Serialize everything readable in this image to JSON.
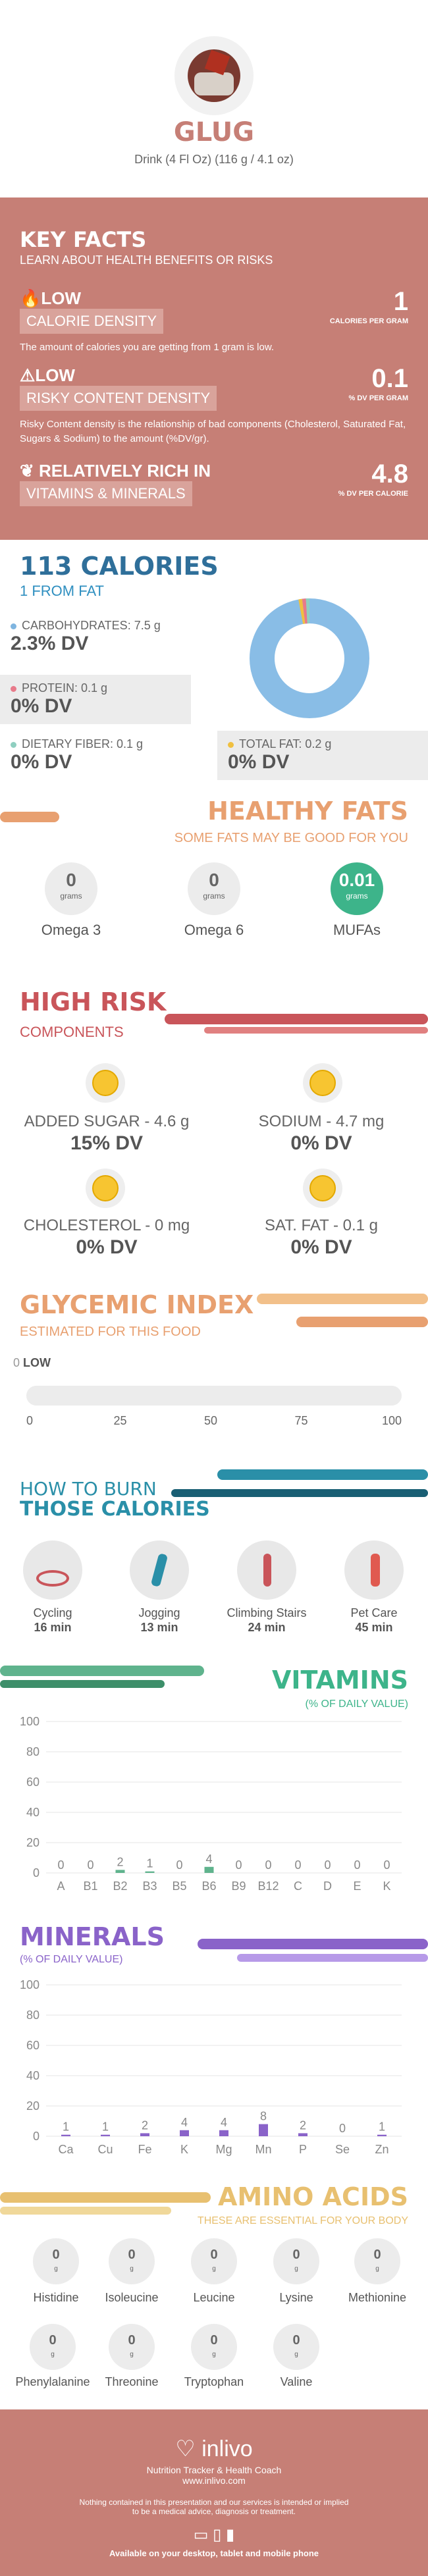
{
  "header": {
    "name": "GLUG",
    "serving": "Drink (4 Fl Oz) (116 g / 4.1 oz)"
  },
  "key_facts": {
    "title": "KEY FACTS",
    "subtitle": "LEARN ABOUT HEALTH BENEFITS OR RISKS",
    "items": [
      {
        "level": "LOW",
        "label": "CALORIE DENSITY",
        "value": "1",
        "unit": "CALORIES PER GRAM",
        "desc": "The amount of calories you are getting from 1 gram is low."
      },
      {
        "level": "LOW",
        "label": "RISKY CONTENT DENSITY",
        "value": "0.1",
        "unit": "% DV PER GRAM",
        "desc": "Risky Content density is the relationship of bad components (Cholesterol, Saturated Fat, Sugars & Sodium) to the amount (%DV/gr)."
      },
      {
        "level": "RELATIVELY RICH",
        "label_suffix": "IN",
        "label": "VITAMINS & MINERALS",
        "value": "4.8",
        "unit": "% DV PER CALORIE"
      }
    ]
  },
  "calories": {
    "title": "113 CALORIES",
    "subtitle": "1 FROM FAT",
    "carbs_label": "CARBOHYDRATES: 7.5 g",
    "carbs_dv": "2.3% DV",
    "protein_label": "PROTEIN: 0.1 g",
    "protein_dv": "0% DV",
    "fiber_label": "DIETARY FIBER: 0.1 g",
    "fiber_dv": "0% DV",
    "fat_label": "TOTAL FAT: 0.2 g",
    "fat_dv": "0% DV",
    "donut": {
      "carbs": 0.97,
      "protein": 0.01,
      "fiber": 0.01,
      "fat": 0.01
    }
  },
  "fats": {
    "title": "HEALTHY FATS",
    "subtitle": "SOME FATS MAY BE GOOD FOR YOU",
    "items": [
      {
        "value": "0",
        "unit": "grams",
        "label": "Omega 3"
      },
      {
        "value": "0",
        "unit": "grams",
        "label": "Omega 6"
      },
      {
        "value": "0.01",
        "unit": "grams",
        "label": "MUFAs"
      }
    ]
  },
  "risk": {
    "title": "HIGH RISK",
    "subtitle": "COMPONENTS",
    "items": [
      {
        "label": "ADDED SUGAR - 4.6 g",
        "dv": "15% DV"
      },
      {
        "label": "SODIUM - 4.7 mg",
        "dv": "0% DV"
      },
      {
        "label": "CHOLESTEROL - 0 mg",
        "dv": "0% DV"
      },
      {
        "label": "SAT. FAT - 0.1 g",
        "dv": "0% DV"
      }
    ]
  },
  "glycemic": {
    "title": "GLYCEMIC INDEX",
    "subtitle": "ESTIMATED FOR THIS FOOD",
    "value": "0",
    "level": "LOW",
    "ticks": [
      "0",
      "25",
      "50",
      "75",
      "100"
    ]
  },
  "burn": {
    "title1": "HOW TO BURN",
    "title2": "THOSE CALORIES",
    "items": [
      {
        "label": "Cycling",
        "min": "16 min"
      },
      {
        "label": "Jogging",
        "min": "13 min"
      },
      {
        "label": "Climbing Stairs",
        "min": "24 min"
      },
      {
        "label": "Pet Care",
        "min": "45 min"
      }
    ]
  },
  "vitamins": {
    "title": "VITAMINS",
    "subtitle": "(% OF DAILY VALUE)"
  },
  "minerals": {
    "title": "MINERALS",
    "subtitle": "(% OF DAILY VALUE)"
  },
  "chart_data": [
    {
      "type": "bar",
      "title": "VITAMINS",
      "ylim": [
        0,
        100
      ],
      "yticks": [
        0,
        20,
        40,
        60,
        80,
        100
      ],
      "categories": [
        "A",
        "B1",
        "B2",
        "B3",
        "B5",
        "B6",
        "B9",
        "B12",
        "C",
        "D",
        "E",
        "K"
      ],
      "values": [
        0,
        0,
        2,
        1,
        0,
        4,
        0,
        0,
        0,
        0,
        0,
        0
      ],
      "color": "#5fb38d"
    },
    {
      "type": "bar",
      "title": "MINERALS",
      "ylim": [
        0,
        100
      ],
      "yticks": [
        0,
        20,
        40,
        60,
        80,
        100
      ],
      "categories": [
        "Ca",
        "Cu",
        "Fe",
        "K",
        "Mg",
        "Mn",
        "P",
        "Se",
        "Zn"
      ],
      "values": [
        1,
        1,
        2,
        4,
        4,
        8,
        2,
        0,
        1
      ],
      "color": "#8a63c9"
    }
  ],
  "amino": {
    "title": "AMINO ACIDS",
    "subtitle": "THESE ARE ESSENTIAL FOR YOUR BODY",
    "items": [
      {
        "value": "0",
        "unit": "g",
        "label": "Histidine"
      },
      {
        "value": "0",
        "unit": "g",
        "label": "Isoleucine"
      },
      {
        "value": "0",
        "unit": "g",
        "label": "Leucine"
      },
      {
        "value": "0",
        "unit": "g",
        "label": "Lysine"
      },
      {
        "value": "0",
        "unit": "g",
        "label": "Methionine"
      },
      {
        "value": "0",
        "unit": "g",
        "label": "Phenylalanine"
      },
      {
        "value": "0",
        "unit": "g",
        "label": "Threonine"
      },
      {
        "value": "0",
        "unit": "g",
        "label": "Tryptophan"
      },
      {
        "value": "0",
        "unit": "g",
        "label": "Valine"
      }
    ]
  },
  "footer": {
    "brand": "inlivo",
    "tagline": "Nutrition Tracker & Health Coach",
    "url": "www.inlivo.com",
    "disclaimer1": "Nothing contained in this presentation and our services is intended or implied",
    "disclaimer2": "to be a medical advice, diagnosis or treatment.",
    "available": "Available on your desktop, tablet and mobile phone"
  },
  "colors": {
    "rose": "#c67f76",
    "blue": "#2f8fc0",
    "orange": "#e8a070",
    "green": "#3db48a",
    "red": "#c9555a",
    "teal": "#2a8fa8",
    "purple": "#8a63c9",
    "gold": "#e8c070"
  }
}
